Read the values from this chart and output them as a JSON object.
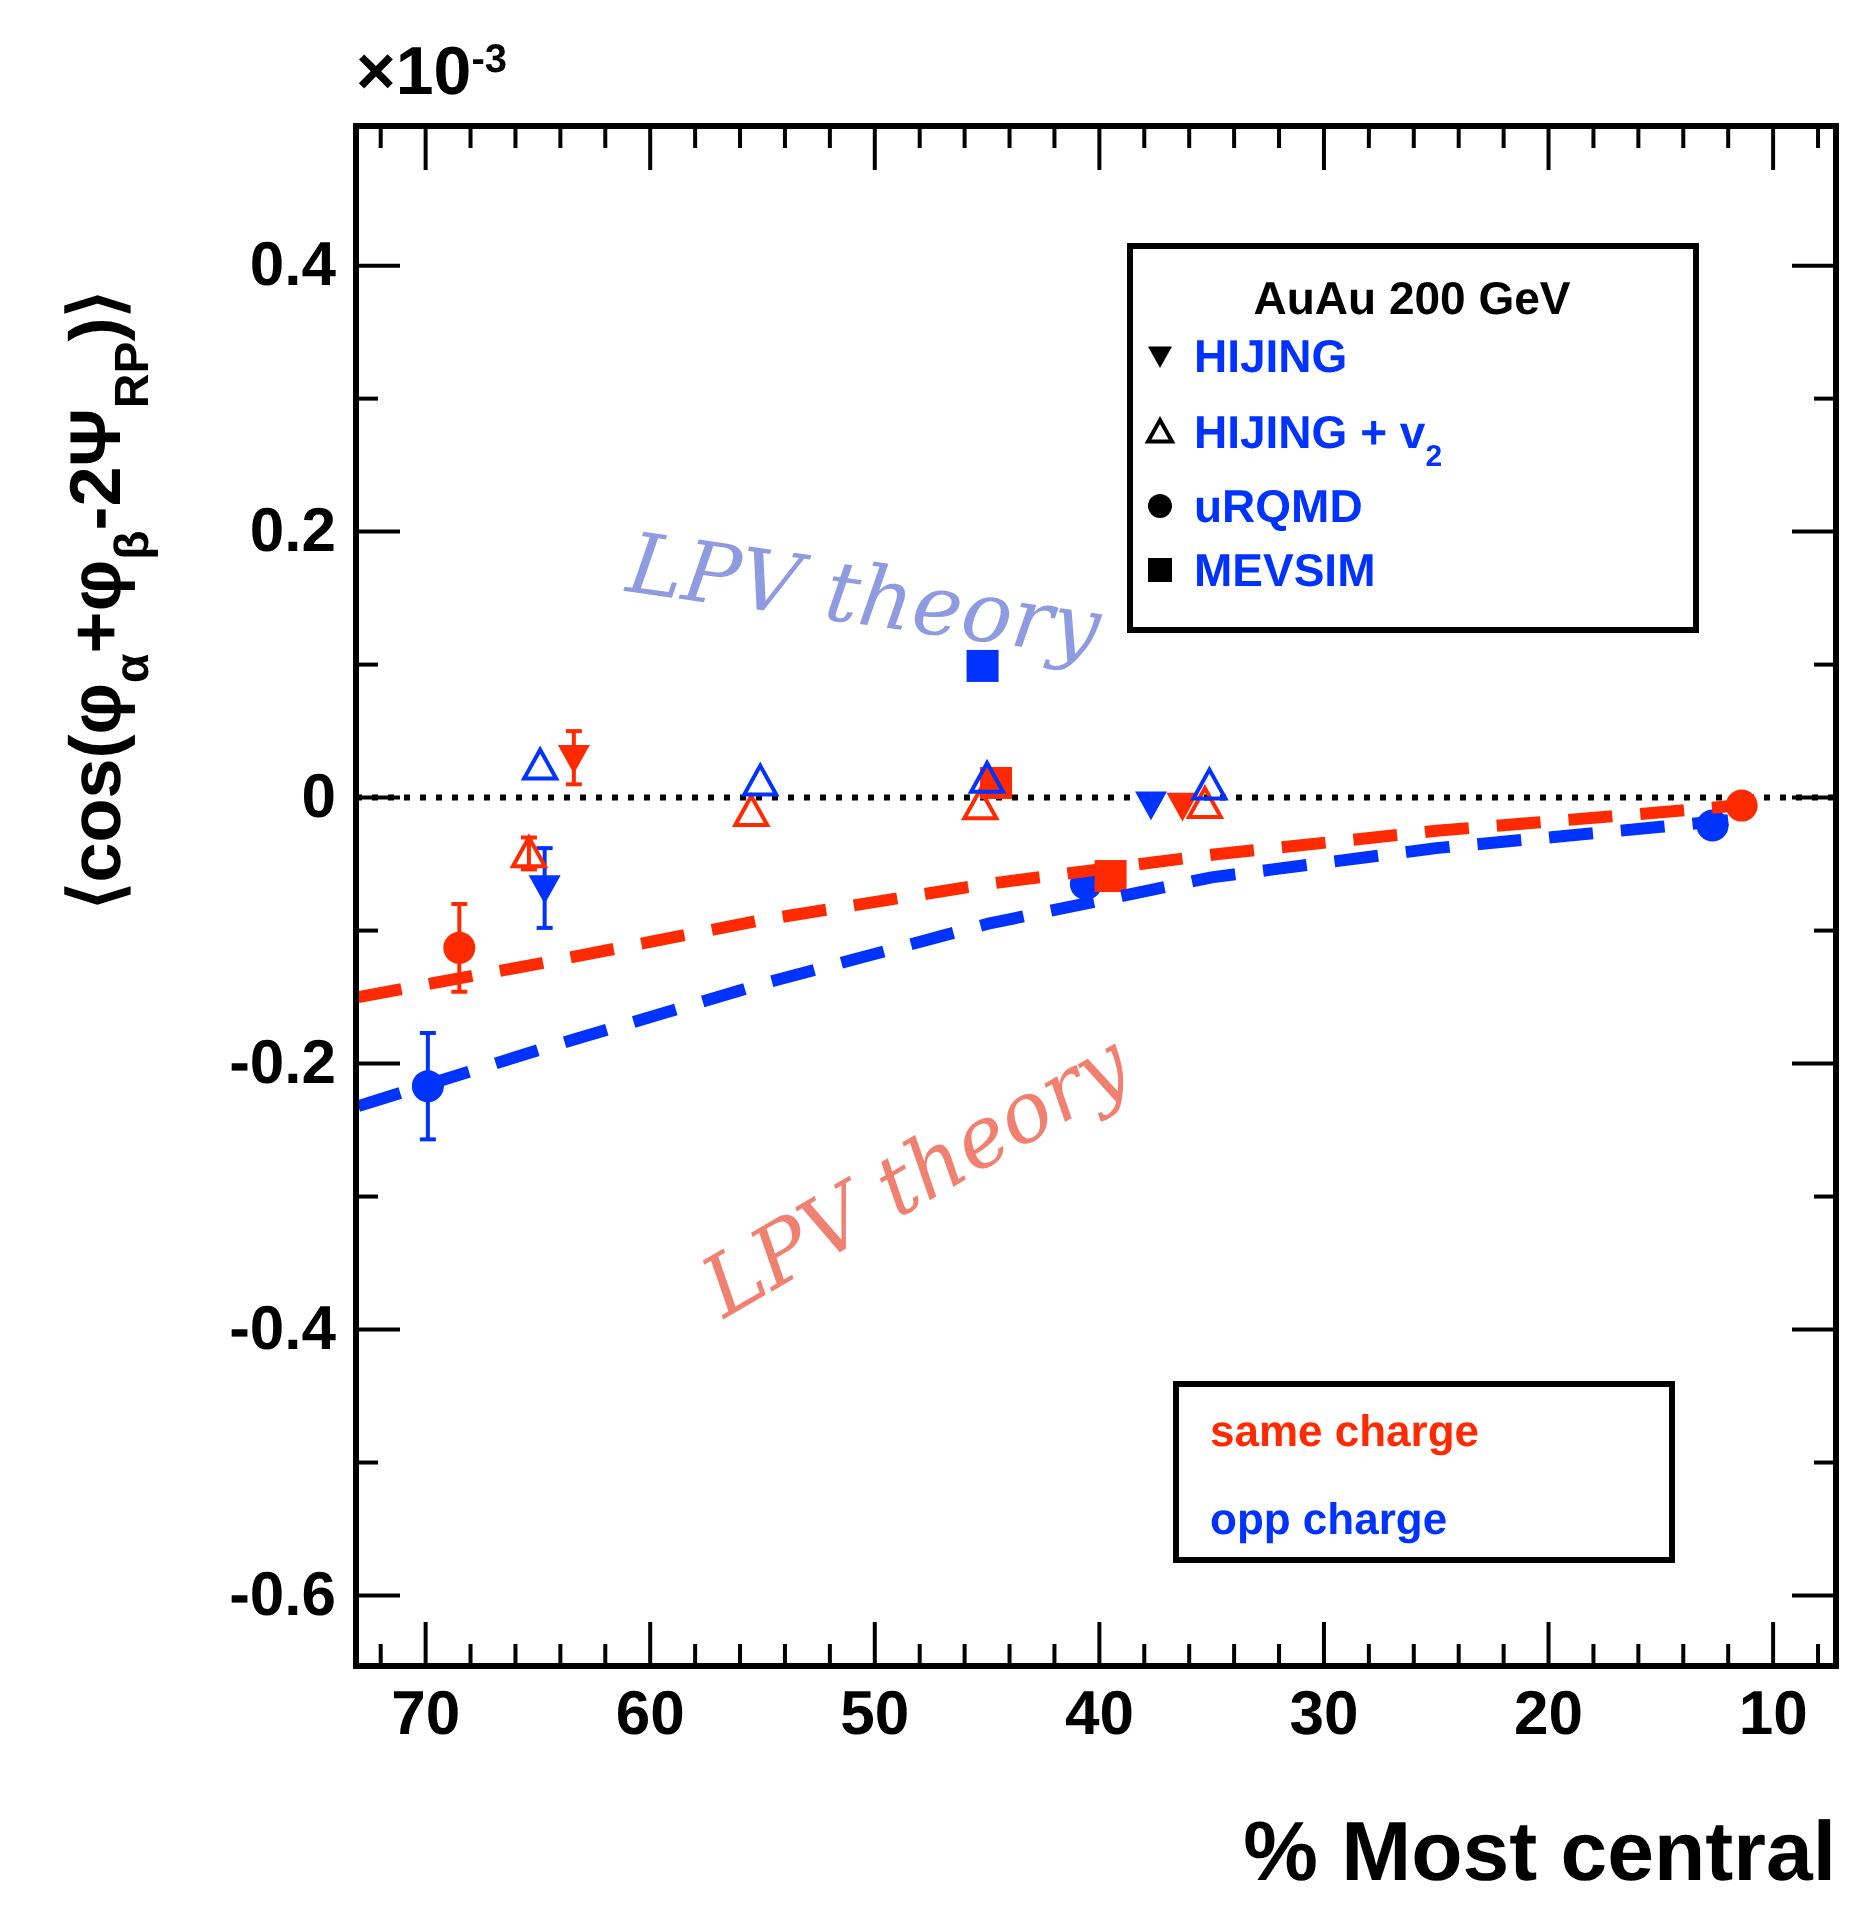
{
  "chart_data": {
    "type": "scatter",
    "ylabel": "⟨cos(φ$_{α}$+φ$_{β}$-2Ψ$_{RP}$)⟩",
    "xlabel": "% Most central",
    "legend_title": "AuAu 200 GeV",
    "legend": "bottom right",
    "xlim": [
      73.1,
      7.2
    ],
    "xticks": [
      70,
      60,
      50,
      40,
      30,
      20,
      10,
      {
        "value": 72,
        "label": null
      },
      {
        "value": 68,
        "label": null
      },
      {
        "value": 66,
        "label": null
      },
      {
        "value": 64,
        "label": null
      },
      {
        "value": 62,
        "label": null
      },
      {
        "value": 58,
        "label": null
      },
      {
        "value": 56,
        "label": null
      },
      {
        "value": 54,
        "label": null
      },
      {
        "value": 52,
        "label": null
      },
      {
        "value": 48,
        "label": null
      },
      {
        "value": 46,
        "label": null
      },
      {
        "value": 44,
        "label": null
      },
      {
        "value": 42,
        "label": null
      },
      {
        "value": 38,
        "label": null
      },
      {
        "value": 36,
        "label": null
      },
      {
        "value": 34,
        "label": null
      },
      {
        "value": 32,
        "label": null
      },
      {
        "value": 28,
        "label": null
      },
      {
        "value": 26,
        "label": null
      },
      {
        "value": 24,
        "label": null
      },
      {
        "value": 22,
        "label": null
      },
      {
        "value": 18,
        "label": null
      },
      {
        "value": 16,
        "label": null
      },
      {
        "value": 14,
        "label": null
      },
      {
        "value": 12,
        "label": null
      },
      {
        "value": 8,
        "label": null
      }
    ],
    "ylim": [
      -0.653,
      0.505
    ],
    "yticks": [
      -0.6,
      -0.4,
      -0.2,
      0,
      0.2,
      0.4,
      {
        "value": -0.5,
        "label": null
      },
      {
        "value": -0.3,
        "label": null
      },
      {
        "value": -0.1,
        "label": null
      },
      {
        "value": 0.1,
        "label": null
      },
      {
        "value": 0.3,
        "label": null
      }
    ],
    "ref_lines": [
      {
        "axis": "y",
        "value": 0,
        "line_style": "dotted",
        "color": "#000000"
      }
    ],
    "annotations": [
      "×10$^{-3}$",
      "HIJING",
      "HIJING + v$_{2}$",
      "uRQMD",
      "MEVSIM",
      "LPV theory",
      "LPV theory"
    ],
    "series": [
      {
        "marker": "triangle-down",
        "color": "#ff2a00",
        "x": [
          63.4,
          36.3
        ],
        "values": [
          0.03,
          -0.006
        ],
        "errors": [
          0.02,
          null
        ]
      },
      {
        "marker": "triangle-down",
        "color": "#0033ff",
        "x": [
          64.7,
          37.7
        ],
        "values": [
          -0.068,
          -0.005
        ],
        "errors": [
          0.03,
          null
        ]
      },
      {
        "marker": "triangle-open",
        "color": "#ff2a00",
        "x": [
          65.4,
          55.5,
          45.3,
          35.3
        ],
        "values": [
          -0.042,
          -0.011,
          -0.006,
          -0.005
        ],
        "errors": [
          0.012,
          null,
          null,
          null
        ]
      },
      {
        "marker": "triangle-open",
        "color": "#0033ff",
        "x": [
          64.9,
          55.1,
          45.0,
          35.1
        ],
        "values": [
          0.024,
          0.012,
          0.014,
          0.009
        ]
      },
      {
        "marker": "circle",
        "color": "#ff2a00",
        "x": [
          68.5,
          11.4
        ],
        "values": [
          -0.113,
          -0.006
        ],
        "errors": [
          0.033,
          null
        ]
      },
      {
        "marker": "circle",
        "color": "#0033ff",
        "x": [
          69.9,
          40.6,
          12.7
        ],
        "values": [
          -0.217,
          -0.065,
          -0.021
        ],
        "errors": [
          0.04,
          null,
          null
        ]
      },
      {
        "marker": "square",
        "color": "#ff2a00",
        "x": [
          44.6,
          39.5
        ],
        "values": [
          0.011,
          -0.059
        ]
      },
      {
        "marker": "square",
        "color": "#0033ff",
        "x": [
          45.2
        ],
        "values": [
          0.099
        ]
      },
      {
        "type": "line",
        "name": "same charge",
        "line_style": "dashed",
        "color": "#ff2a00",
        "x": [
          73,
          65,
          55,
          45,
          35,
          25,
          15,
          11
        ],
        "values": [
          -0.15,
          -0.125,
          -0.092,
          -0.065,
          -0.043,
          -0.025,
          -0.011,
          -0.005
        ]
      },
      {
        "type": "line",
        "name": "opp charge",
        "line_style": "dashed",
        "color": "#0033ff",
        "x": [
          73,
          65,
          55,
          45,
          35,
          25,
          15,
          12
        ],
        "values": [
          -0.232,
          -0.19,
          -0.14,
          -0.095,
          -0.06,
          -0.038,
          -0.022,
          -0.017
        ]
      }
    ]
  }
}
